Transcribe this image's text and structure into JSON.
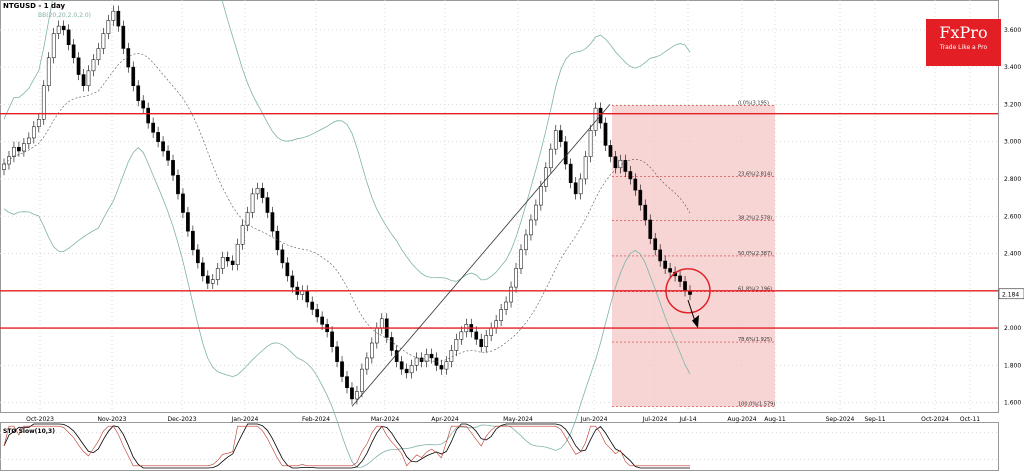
{
  "header": {
    "title": "NTGUSD - 1 day",
    "bb_label": "BB(20,20,2.0,2.0)",
    "sto_label": "STO Slow(10,3)"
  },
  "logo": {
    "brand": "FxPro",
    "tagline": "Trade Like a Pro"
  },
  "colors": {
    "bg": "#ffffff",
    "grid": "#d9d9d9",
    "candle_up": "#4caf50",
    "candle_down": "#000000",
    "band": "#7fb3a9",
    "mid": "#555555",
    "sr": "#e31e24",
    "fib_zone": "#f4c7c7",
    "fib_line": "#d33a3a"
  },
  "chart_data": {
    "type": "candlestick",
    "symbol": "NTGUSD",
    "timeframe": "1 day",
    "ylim": [
      1.55,
      3.76
    ],
    "y_ticks": [
      "3.600",
      "3.400",
      "3.200",
      "3.000",
      "2.800",
      "2.600",
      "2.400",
      "2.200",
      "2.000",
      "1.800",
      "1.600"
    ],
    "last_price": "2.184",
    "x_ticks": [
      "Oct-2023",
      "Nov-2023",
      "Dec-2023",
      "Jan-2024",
      "Feb-2024",
      "Mar-2024",
      "Apr-2024",
      "May-2024",
      "Jun-2024",
      "Jul-2024",
      "Jul-14",
      "Aug-2024",
      "Aug-11",
      "Sep-2024",
      "Sep-11",
      "Oct-2024",
      "Oct-11"
    ],
    "support_resistance": [
      3.15,
      2.2,
      2.0
    ],
    "fibonacci": [
      {
        "label": "0.0%(3.195)",
        "value": 3.195
      },
      {
        "label": "23.6%(2.814)",
        "value": 2.814
      },
      {
        "label": "38.2%(2.578)",
        "value": 2.578
      },
      {
        "label": "50.0%(2.387)",
        "value": 2.387
      },
      {
        "label": "61.8%(2.196)",
        "value": 2.196
      },
      {
        "label": "78.6%(1.925)",
        "value": 1.925
      },
      {
        "label": "100.0%(1.579)",
        "value": 1.579
      }
    ],
    "closes": [
      2.88,
      2.92,
      2.97,
      2.95,
      2.99,
      3.02,
      3.08,
      3.12,
      3.3,
      3.45,
      3.58,
      3.62,
      3.6,
      3.52,
      3.45,
      3.36,
      3.3,
      3.38,
      3.44,
      3.5,
      3.58,
      3.65,
      3.7,
      3.62,
      3.5,
      3.4,
      3.3,
      3.22,
      3.18,
      3.1,
      3.05,
      3.0,
      2.95,
      2.9,
      2.82,
      2.72,
      2.62,
      2.52,
      2.42,
      2.35,
      2.28,
      2.24,
      2.26,
      2.32,
      2.38,
      2.36,
      2.34,
      2.45,
      2.55,
      2.62,
      2.72,
      2.75,
      2.7,
      2.62,
      2.52,
      2.42,
      2.35,
      2.28,
      2.22,
      2.18,
      2.2,
      2.14,
      2.1,
      2.06,
      2.02,
      1.98,
      1.9,
      1.82,
      1.74,
      1.68,
      1.62,
      1.66,
      1.78,
      1.84,
      1.92,
      2.0,
      2.05,
      1.95,
      1.88,
      1.82,
      1.78,
      1.76,
      1.8,
      1.84,
      1.82,
      1.86,
      1.84,
      1.8,
      1.78,
      1.82,
      1.88,
      1.94,
      1.98,
      2.02,
      1.98,
      1.94,
      1.9,
      1.96,
      2.0,
      2.04,
      2.1,
      2.14,
      2.22,
      2.32,
      2.42,
      2.5,
      2.58,
      2.66,
      2.76,
      2.86,
      2.96,
      3.06,
      3.0,
      2.88,
      2.78,
      2.72,
      2.8,
      2.92,
      3.06,
      3.18,
      3.1,
      2.98,
      2.92,
      2.86,
      2.9,
      2.84,
      2.8,
      2.74,
      2.66,
      2.58,
      2.48,
      2.42,
      2.36,
      2.32,
      2.3,
      2.28,
      2.25,
      2.2,
      2.18
    ]
  }
}
